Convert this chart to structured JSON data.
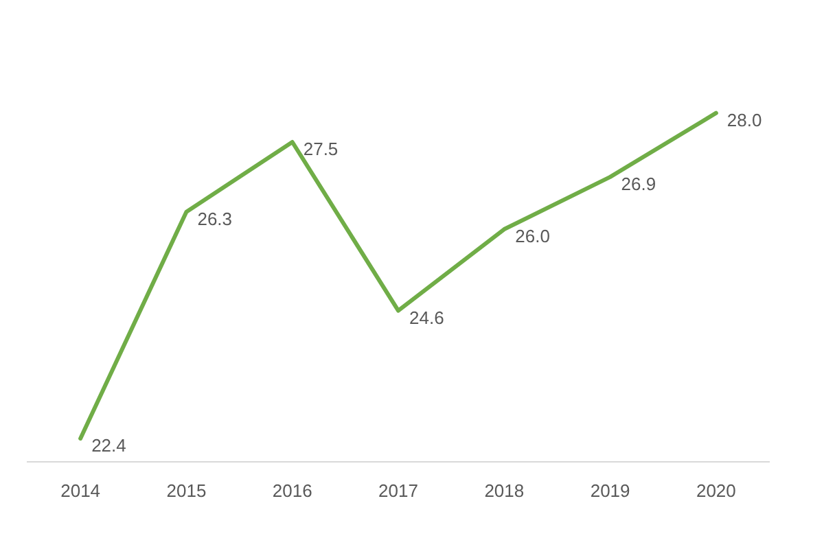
{
  "chart_data": {
    "type": "line",
    "categories": [
      "2014",
      "2015",
      "2016",
      "2017",
      "2018",
      "2019",
      "2020"
    ],
    "series": [
      {
        "color": "#70ad47",
        "values": [
          22.4,
          26.3,
          27.5,
          24.6,
          26.0,
          26.9,
          28.0
        ],
        "value_labels": [
          "22.4",
          "26.3",
          "27.5",
          "24.6",
          "26.0",
          "26.9",
          "28.0"
        ]
      }
    ],
    "grid": false,
    "legend": false,
    "marker": "none",
    "line_style": "solid",
    "tick_labels": "x"
  }
}
